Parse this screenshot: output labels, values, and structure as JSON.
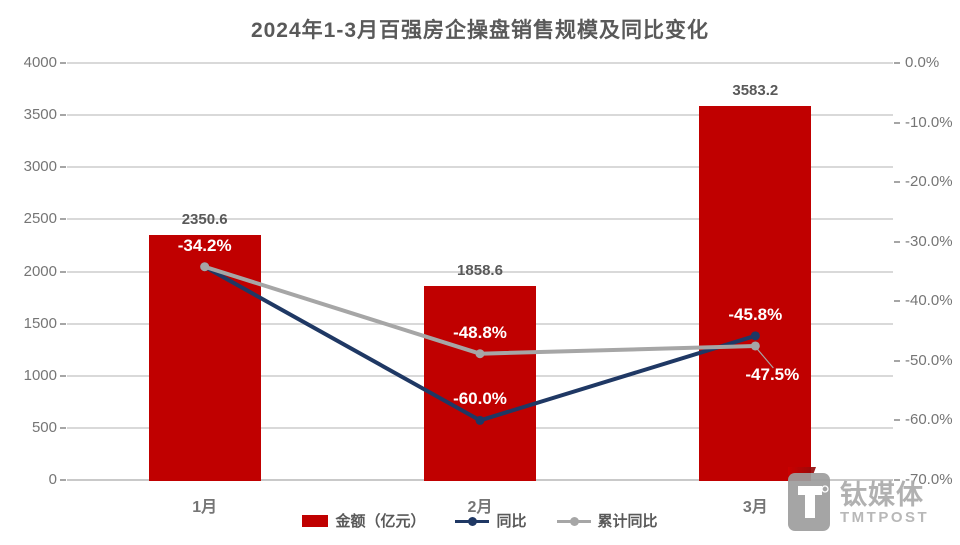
{
  "chart_data": {
    "type": "bar",
    "title": "2024年1-3月百强房企操盘销售规模及同比变化",
    "categories": [
      "1月",
      "2月",
      "3月"
    ],
    "bar_series": {
      "name": "金额（亿元）",
      "values": [
        2350.6,
        1858.6,
        3583.2
      ],
      "labels": [
        "2350.6",
        "1858.6",
        "3583.2"
      ],
      "color": "#c00000"
    },
    "line_series": [
      {
        "name": "同比",
        "color": "#1f3864",
        "values": [
          -34.2,
          -60.0,
          -45.8
        ],
        "labels": [
          "-34.2%",
          "-60.0%",
          "-45.8%"
        ],
        "label_sides": [
          "above",
          "above",
          "above"
        ]
      },
      {
        "name": "累计同比",
        "color": "#a6a6a6",
        "values": [
          -34.2,
          -48.8,
          -47.5
        ],
        "labels": [
          "",
          "-48.8%",
          "-47.5%"
        ],
        "label_sides": [
          "none",
          "above",
          "below-leader"
        ]
      }
    ],
    "left_axis": {
      "min": 0,
      "max": 4000,
      "step": 500,
      "ticks": [
        "4000",
        "3500",
        "3000",
        "2500",
        "2000",
        "1500",
        "1000",
        "500",
        "0"
      ]
    },
    "right_axis": {
      "min": -70,
      "max": 0,
      "step": -10,
      "ticks": [
        "0.0%",
        "-10.0%",
        "-20.0%",
        "-30.0%",
        "-40.0%",
        "-50.0%",
        "-60.0%",
        "-70.0%"
      ]
    },
    "grid": true,
    "legend_position": "bottom"
  },
  "legend": {
    "items": [
      {
        "label": "金额（亿元）",
        "swatch": "bar",
        "color": "#c00000"
      },
      {
        "label": "同比",
        "swatch": "line-dot",
        "color": "#1f3864"
      },
      {
        "label": "累计同比",
        "swatch": "line-dot",
        "color": "#a6a6a6"
      }
    ]
  },
  "watermark": {
    "cn": "钛媒体",
    "en": "TMTPOST",
    "registered_mark": "®"
  },
  "colors": {
    "bar_red": "#c00000",
    "line_blue": "#1f3864",
    "line_gray": "#a6a6a6",
    "gridline": "#d9d9d9",
    "axis_text": "#757575",
    "title_text": "#595959",
    "label_on_bar": "#ffffff"
  }
}
